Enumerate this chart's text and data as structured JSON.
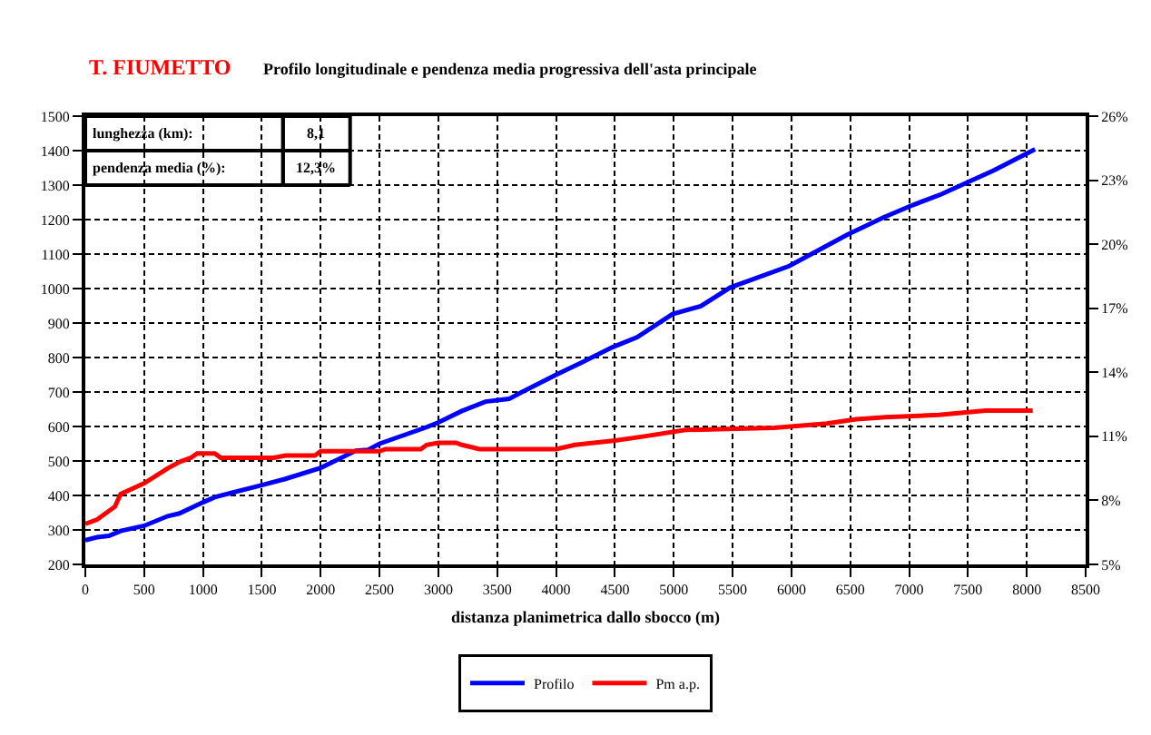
{
  "chart_data": {
    "type": "line",
    "title": "T. FIUMETTO",
    "subtitle": "Profilo longitudinale e pendenza media progressiva dell'asta principale",
    "xlabel": "distanza planimetrica dallo sbocco (m)",
    "annotations": [
      "lunghezza (km):",
      "8,1",
      "pendenza media (%):",
      "12,3%"
    ],
    "xlim": [
      0,
      8500
    ],
    "xticks": [
      0,
      500,
      1000,
      1500,
      2000,
      2500,
      3000,
      3500,
      4000,
      4500,
      5000,
      5500,
      6000,
      6500,
      7000,
      7500,
      8000,
      8500
    ],
    "ylim": [
      200,
      1500
    ],
    "yticks": [
      200,
      300,
      400,
      500,
      600,
      700,
      800,
      900,
      1000,
      1100,
      1200,
      1300,
      1400,
      1500
    ],
    "y2lim": [
      5,
      26
    ],
    "y2ticks": [
      {
        "value": 5,
        "label": "5%"
      },
      {
        "value": 8,
        "label": "8%"
      },
      {
        "value": 11,
        "label": "11%"
      },
      {
        "value": 14,
        "label": "14%"
      },
      {
        "value": 17,
        "label": "17%"
      },
      {
        "value": 20,
        "label": "20%"
      },
      {
        "value": 23,
        "label": "23%"
      },
      {
        "value": 26,
        "label": "26%"
      }
    ],
    "grid": true,
    "legend": "bottom",
    "marker": "none",
    "line_style": "solid",
    "series": [
      {
        "name": "Profilo",
        "color": "#0000ff",
        "x": [
          0,
          100,
          200,
          300,
          500,
          700,
          800,
          1000,
          1100,
          1500,
          1700,
          2000,
          2300,
          2400,
          2500,
          2900,
          3000,
          3200,
          3400,
          3600,
          3700,
          4000,
          4210,
          4480,
          4690,
          4990,
          5230,
          5480,
          5980,
          6230,
          6480,
          6780,
          7030,
          7270,
          7520,
          7720,
          8070
        ],
        "values": [
          270,
          279,
          283,
          297,
          312,
          340,
          348,
          380,
          395,
          430,
          448,
          480,
          530,
          532,
          550,
          598,
          612,
          645,
          672,
          680,
          698,
          750,
          784,
          830,
          859,
          926,
          949,
          1003,
          1065,
          1111,
          1157,
          1206,
          1242,
          1273,
          1312,
          1343,
          1404
        ]
      },
      {
        "name": "Pm a.p.",
        "color": "#ff0000",
        "axis": "y2",
        "x": [
          0,
          100,
          250,
          300,
          500,
          700,
          800,
          900,
          950,
          1100,
          1150,
          1600,
          1700,
          1950,
          2000,
          2500,
          2550,
          2850,
          2900,
          3000,
          3150,
          3200,
          3350,
          4000,
          4160,
          4500,
          4750,
          5100,
          5850,
          6300,
          6550,
          6800,
          7250,
          7650,
          8050
        ],
        "values": [
          6.9,
          7.1,
          7.7,
          8.3,
          8.8,
          9.5,
          9.8,
          10.0,
          10.2,
          10.2,
          10.0,
          10.0,
          10.1,
          10.1,
          10.3,
          10.3,
          10.4,
          10.4,
          10.6,
          10.7,
          10.7,
          10.6,
          10.4,
          10.4,
          10.6,
          10.8,
          11.0,
          11.3,
          11.4,
          11.6,
          11.8,
          11.9,
          12.0,
          12.2,
          12.2
        ]
      }
    ]
  }
}
